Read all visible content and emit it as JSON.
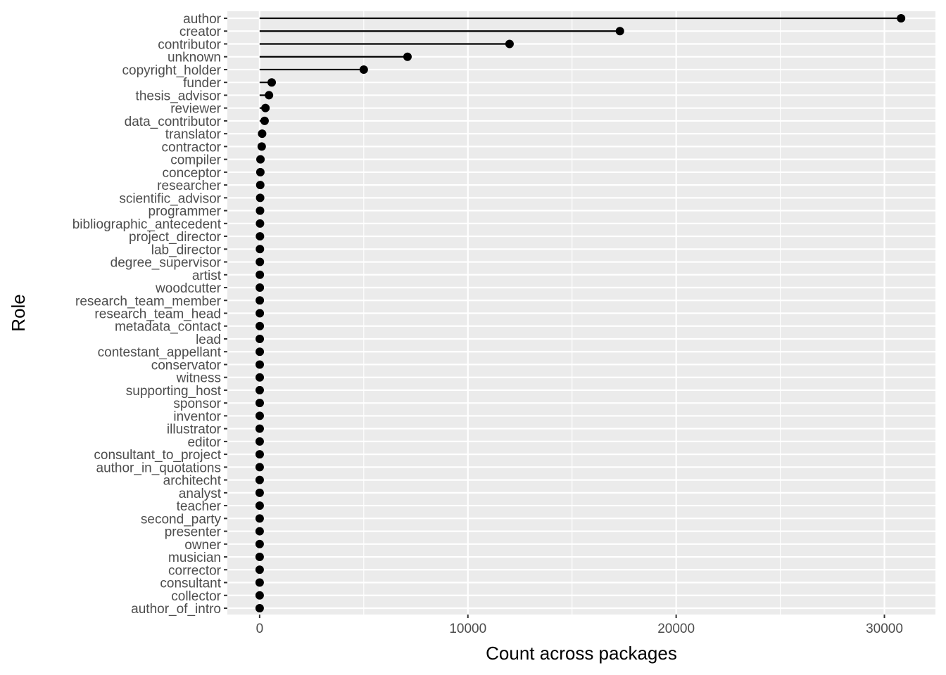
{
  "chart_data": {
    "type": "lollipop",
    "xlabel": "Count across packages",
    "ylabel": "Role",
    "xlim": [
      -1550,
      32450
    ],
    "xticks": [
      0,
      10000,
      20000,
      30000
    ],
    "xtick_labels": [
      "0",
      "10000",
      "20000",
      "30000"
    ],
    "grid": true,
    "categories": [
      "author",
      "creator",
      "contributor",
      "unknown",
      "copyright_holder",
      "funder",
      "thesis_advisor",
      "reviewer",
      "data_contributor",
      "translator",
      "contractor",
      "compiler",
      "conceptor",
      "researcher",
      "scientific_advisor",
      "programmer",
      "bibliographic_antecedent",
      "project_director",
      "lab_director",
      "degree_supervisor",
      "artist",
      "woodcutter",
      "research_team_member",
      "research_team_head",
      "metadata_contact",
      "lead",
      "contestant_appellant",
      "conservator",
      "witness",
      "supporting_host",
      "sponsor",
      "inventor",
      "illustrator",
      "editor",
      "consultant_to_project",
      "author_in_quotations",
      "architecht",
      "analyst",
      "teacher",
      "second_party",
      "presenter",
      "owner",
      "musician",
      "corrector",
      "consultant",
      "collector",
      "author_of_intro"
    ],
    "values": [
      30800,
      17300,
      12000,
      7100,
      5000,
      580,
      450,
      280,
      240,
      120,
      100,
      40,
      35,
      30,
      25,
      20,
      18,
      16,
      14,
      12,
      10,
      9,
      8,
      8,
      7,
      6,
      6,
      5,
      5,
      4,
      4,
      4,
      3,
      3,
      3,
      2,
      2,
      2,
      2,
      2,
      1,
      1,
      1,
      1,
      1,
      1,
      1
    ],
    "point_color": "#000000",
    "panel_color": "#ebebeb",
    "grid_color": "#ffffff"
  }
}
